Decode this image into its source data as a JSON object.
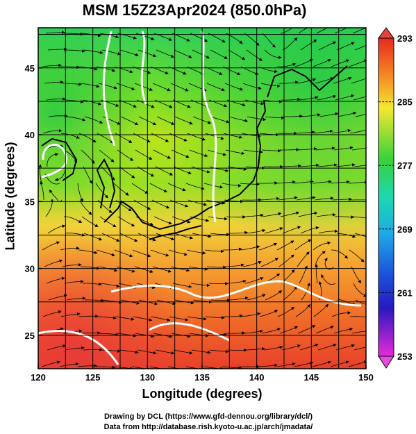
{
  "title": "MSM 15Z23Apr2024 (850.0hPa)",
  "chart_data": {
    "type": "heatmap",
    "xlabel": "Longitude (degrees)",
    "ylabel": "Latitude  (degrees)",
    "xlim": [
      120,
      150
    ],
    "ylim": [
      22.5,
      48
    ],
    "x_ticks": [
      120,
      125,
      130,
      135,
      140,
      145,
      150
    ],
    "y_ticks": [
      25,
      30,
      35,
      40,
      45
    ],
    "grid": true,
    "colorbar": {
      "min": 253,
      "max": 293,
      "labeled_ticks": [
        293,
        285,
        277,
        269,
        261,
        253
      ],
      "location": "right"
    },
    "colors": {
      "warm": "#e8402a",
      "mid": "#7ddc1c",
      "cool": "#1ec84a"
    }
  },
  "credits": {
    "line1": "Drawing by DCL (https://www.gfd-dennou.org/library/dcl/)",
    "line2": "Data from http://database.rish.kyoto-u.ac.jp/arch/jmadata/"
  }
}
